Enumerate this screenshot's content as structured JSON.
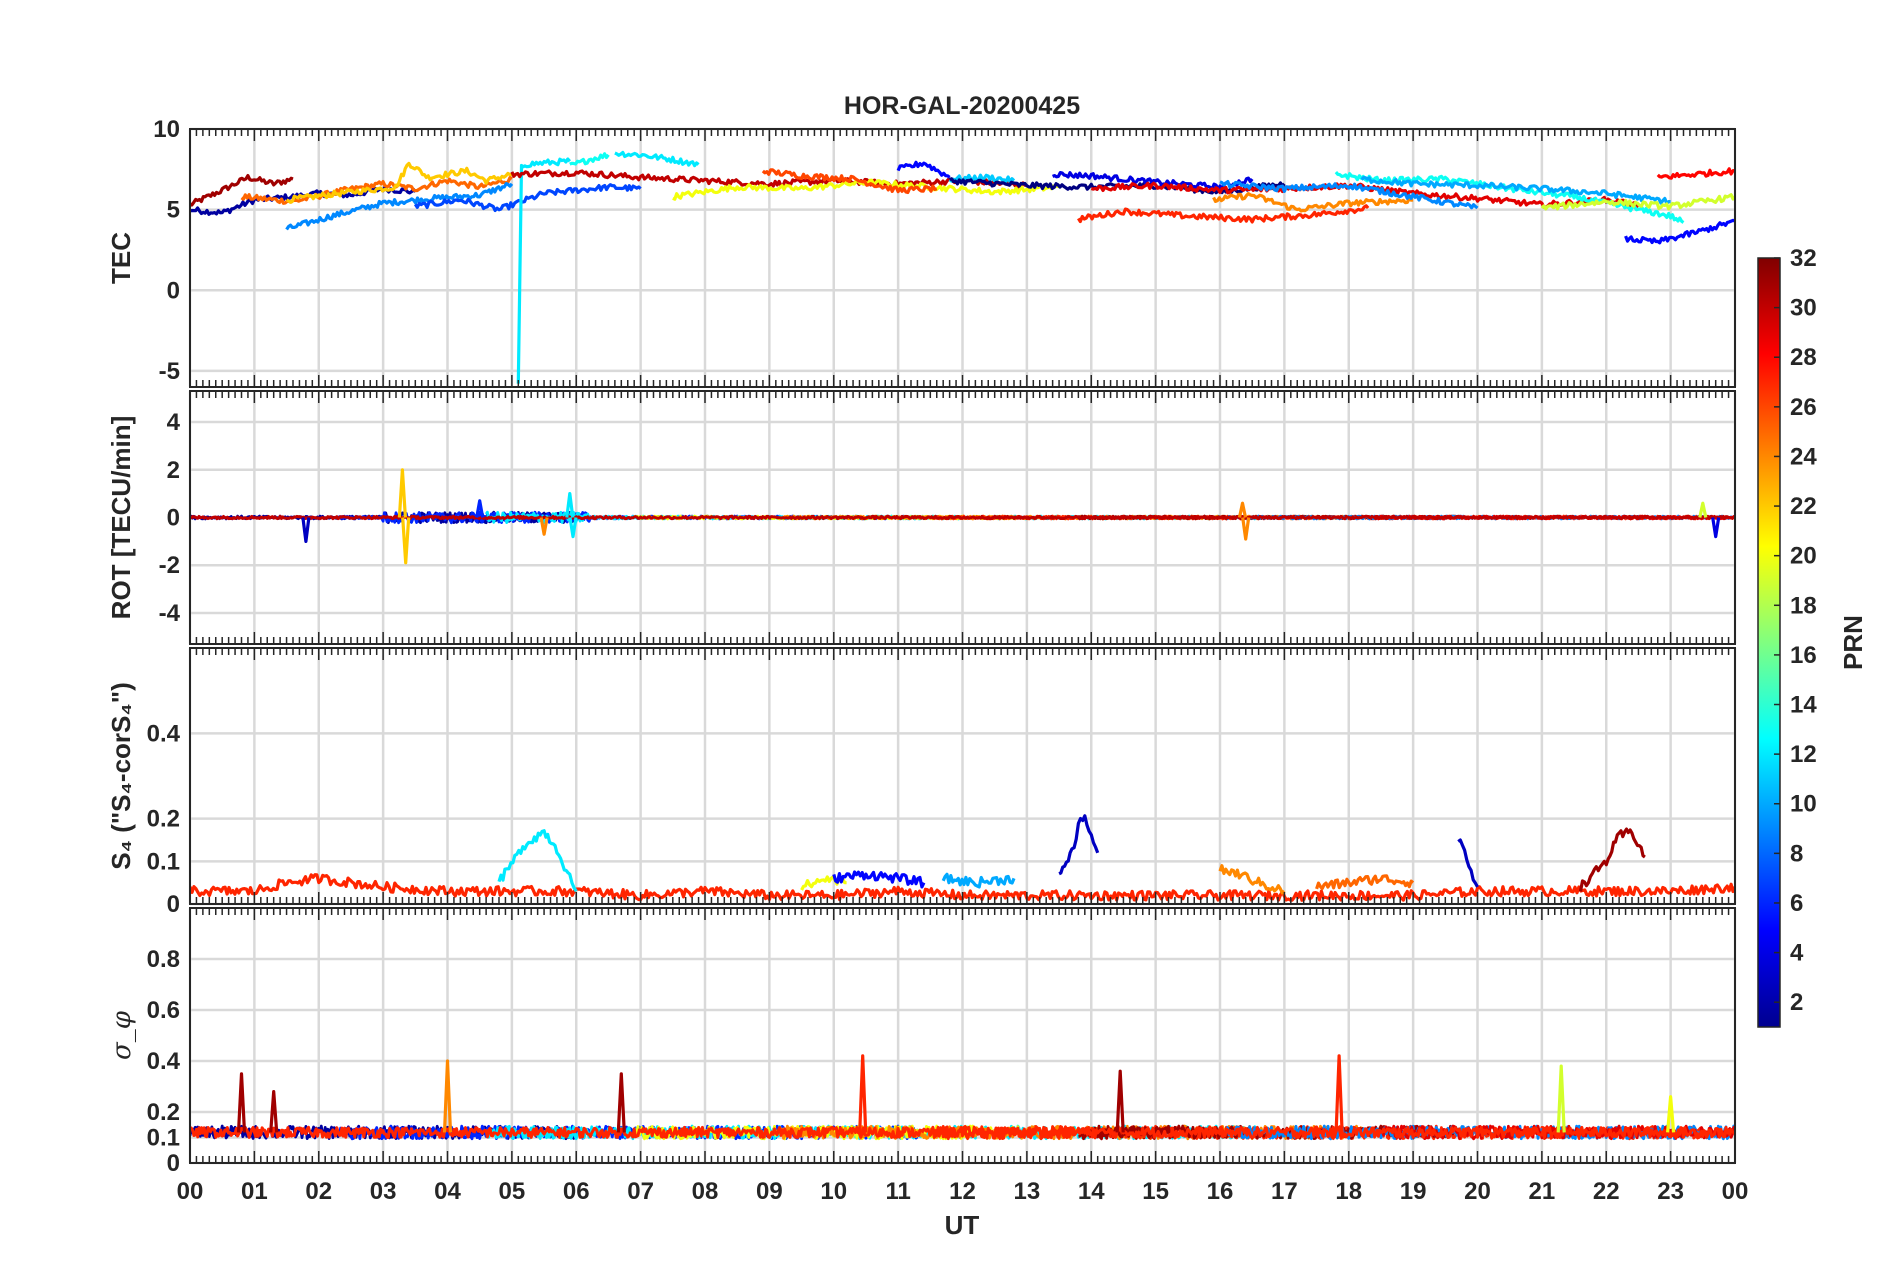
{
  "figure": {
    "title": "HOR-GAL-20200425",
    "xlabel": "UT",
    "colorbar_label": "PRN"
  },
  "chart_data": {
    "type": "line",
    "title": "HOR-GAL-20200425",
    "xlabel": "UT",
    "x_ticks": [
      "00",
      "01",
      "02",
      "03",
      "04",
      "05",
      "06",
      "07",
      "08",
      "09",
      "10",
      "11",
      "12",
      "13",
      "14",
      "15",
      "16",
      "17",
      "18",
      "19",
      "20",
      "21",
      "22",
      "23",
      "00"
    ],
    "xlim_hours": [
      0,
      24
    ],
    "grid": true,
    "colorbar": {
      "label": "PRN",
      "range": [
        1,
        32
      ],
      "ticks": [
        "2",
        "4",
        "6",
        "8",
        "10",
        "12",
        "14",
        "16",
        "18",
        "20",
        "22",
        "24",
        "26",
        "28",
        "30",
        "32"
      ],
      "colormap": "jet",
      "colors": [
        "#00008f",
        "#0000ff",
        "#0080ff",
        "#00ffff",
        "#80ff80",
        "#ffff00",
        "#ff8000",
        "#ff0000",
        "#800000"
      ]
    },
    "panels": [
      {
        "ylabel": "TEC",
        "ylim": [
          -6,
          10
        ],
        "yticks": [
          "10",
          "5",
          "0",
          "-5"
        ],
        "series": [
          {
            "prn": 31,
            "t": [
              0,
              0.5,
              0.9,
              1.3,
              1.6
            ],
            "v": [
              5.3,
              6.2,
              7.0,
              6.6,
              6.9
            ]
          },
          {
            "prn": 2,
            "t": [
              0,
              0.5,
              1.0,
              1.6,
              2.0,
              2.5,
              3.0,
              3.5
            ],
            "v": [
              5.0,
              4.8,
              5.6,
              5.8,
              6.0,
              5.9,
              6.3,
              6.1
            ]
          },
          {
            "prn": 25,
            "t": [
              0.8,
              1.6,
              2.4,
              3.0,
              3.5,
              4.0,
              4.5,
              5.0
            ],
            "v": [
              5.8,
              5.5,
              6.2,
              6.6,
              6.3,
              6.8,
              6.4,
              6.9
            ]
          },
          {
            "prn": 22,
            "t": [
              1.5,
              2.3,
              3.2,
              3.4,
              3.7,
              4.3,
              4.6,
              5.0
            ],
            "v": [
              5.6,
              6.0,
              6.4,
              7.9,
              7.0,
              7.4,
              6.8,
              7.2
            ]
          },
          {
            "prn": 9,
            "t": [
              1.5,
              2.2,
              3.0,
              3.8,
              4.5,
              5.0
            ],
            "v": [
              3.8,
              4.6,
              5.4,
              5.7,
              5.9,
              6.6
            ]
          },
          {
            "prn": 7,
            "t": [
              3.5,
              4.2,
              4.8,
              5.5,
              6.0,
              6.5,
              7.0
            ],
            "v": [
              5.2,
              5.6,
              5.0,
              6.0,
              6.2,
              6.4,
              6.3
            ]
          },
          {
            "prn": 12,
            "t": [
              5.1,
              5.15,
              5.2,
              5.5,
              5.9
            ],
            "v": [
              -5.8,
              7.6,
              7.8,
              7.9,
              8.0
            ]
          },
          {
            "prn": 13,
            "t": [
              5.9,
              6.2,
              6.5
            ],
            "v": [
              7.7,
              8.1,
              8.4
            ]
          },
          {
            "prn": 12,
            "t": [
              6.6,
              7.0,
              7.5,
              7.9
            ],
            "v": [
              8.5,
              8.4,
              8.1,
              7.8
            ]
          },
          {
            "prn": 30,
            "t": [
              5.0,
              6.0,
              7.0,
              8.0,
              9.0,
              10.0,
              11.0,
              12.0,
              13.0
            ],
            "v": [
              7.2,
              7.3,
              7.0,
              6.8,
              6.6,
              6.8,
              6.6,
              6.8,
              6.5
            ]
          },
          {
            "prn": 20,
            "t": [
              7.5,
              8.5,
              9.5,
              10.5,
              11.5,
              12.5,
              13.5
            ],
            "v": [
              5.8,
              6.4,
              6.3,
              6.7,
              6.4,
              6.1,
              6.4
            ]
          },
          {
            "prn": 26,
            "t": [
              8.9,
              9.5,
              10.3,
              11.0,
              11.6
            ],
            "v": [
              7.4,
              7.1,
              6.9,
              6.2,
              6.3
            ]
          },
          {
            "prn": 5,
            "t": [
              11.0,
              11.4,
              11.8
            ],
            "v": [
              7.5,
              7.9,
              7.0
            ]
          },
          {
            "prn": 11,
            "t": [
              11.8,
              12.4,
              12.8
            ],
            "v": [
              6.9,
              7.0,
              6.8
            ]
          },
          {
            "prn": 1,
            "t": [
              11.8,
              13.0,
              14.0,
              15.0,
              16.0,
              17.0
            ],
            "v": [
              6.8,
              6.5,
              6.4,
              6.5,
              6.1,
              6.6
            ]
          },
          {
            "prn": 4,
            "t": [
              13.4,
              14.0,
              15.0,
              16.0,
              16.5
            ],
            "v": [
              7.2,
              7.1,
              6.7,
              6.4,
              6.9
            ]
          },
          {
            "prn": 27,
            "t": [
              13.8,
              14.5,
              15.5,
              16.5,
              17.5,
              18.3
            ],
            "v": [
              4.4,
              4.9,
              4.6,
              4.4,
              4.7,
              5.1
            ]
          },
          {
            "prn": 24,
            "t": [
              15.9,
              16.5,
              17.2,
              18.0,
              19.0
            ],
            "v": [
              5.6,
              5.9,
              5.0,
              5.4,
              5.6
            ]
          },
          {
            "prn": 29,
            "t": [
              14.0,
              15.0,
              16.0,
              17.0,
              18.0,
              19.0,
              20.0,
              21.0,
              22.0,
              22.5
            ],
            "v": [
              6.3,
              6.5,
              6.2,
              6.3,
              6.5,
              6.0,
              5.7,
              5.3,
              5.6,
              5.3
            ]
          },
          {
            "prn": 9,
            "t": [
              16.0,
              17.0,
              18.0,
              19.0,
              20.0
            ],
            "v": [
              6.6,
              6.3,
              6.5,
              5.8,
              5.1
            ]
          },
          {
            "prn": 13,
            "t": [
              17.8,
              18.5,
              19.5,
              20.5,
              21.5,
              22.5,
              23.0,
              23.2
            ],
            "v": [
              7.2,
              6.8,
              6.9,
              6.3,
              5.8,
              5.0,
              4.6,
              4.2
            ]
          },
          {
            "prn": 10,
            "t": [
              18.2,
              19.0,
              20.0,
              21.0,
              22.0,
              23.0
            ],
            "v": [
              6.9,
              6.6,
              6.5,
              6.3,
              6.0,
              5.5
            ]
          },
          {
            "prn": 19,
            "t": [
              21.0,
              22.0,
              23.0,
              24.0
            ],
            "v": [
              5.1,
              5.5,
              5.2,
              5.8
            ]
          },
          {
            "prn": 5,
            "t": [
              22.3,
              22.8,
              23.5,
              24.0
            ],
            "v": [
              3.2,
              3.0,
              3.7,
              4.3
            ]
          },
          {
            "prn": 28,
            "t": [
              22.8,
              23.4,
              24.0
            ],
            "v": [
              7.0,
              7.2,
              7.4
            ]
          }
        ]
      },
      {
        "ylabel": "ROT [TECU/min]",
        "ylim": [
          -5.3,
          5.3
        ],
        "yticks": [
          "4",
          "2",
          "0",
          "-2",
          "-4"
        ],
        "baseline": 0,
        "note": "ROT fluctuates near 0 for all PRNs; largest excursions near 03.4 UT",
        "spikes": [
          {
            "t": 1.8,
            "v": -1.0,
            "prn": 3
          },
          {
            "t": 3.3,
            "v": 2.0,
            "prn": 22
          },
          {
            "t": 3.35,
            "v": -1.9,
            "prn": 22
          },
          {
            "t": 4.5,
            "v": 0.7,
            "prn": 6
          },
          {
            "t": 5.5,
            "v": -0.7,
            "prn": 24
          },
          {
            "t": 5.9,
            "v": 1.0,
            "prn": 12
          },
          {
            "t": 5.95,
            "v": -0.8,
            "prn": 12
          },
          {
            "t": 16.4,
            "v": -0.9,
            "prn": 24
          },
          {
            "t": 16.35,
            "v": 0.6,
            "prn": 24
          },
          {
            "t": 23.5,
            "v": 0.6,
            "prn": 19
          },
          {
            "t": 23.7,
            "v": -0.8,
            "prn": 4
          }
        ]
      },
      {
        "ylabel": "S₄ (\"S₄-corS₄\")",
        "ylim": [
          0,
          0.6
        ],
        "yticks": [
          "0.4",
          "0.2",
          "0.1",
          "0"
        ],
        "series": [
          {
            "prn": 27,
            "t": [
              0,
              1,
              1.5,
              2,
              3,
              4,
              5,
              6,
              7,
              8,
              9,
              10,
              11,
              12,
              13,
              14,
              15,
              16,
              17,
              18,
              19,
              20,
              21,
              22,
              23,
              24
            ],
            "v": [
              0.03,
              0.03,
              0.05,
              0.06,
              0.04,
              0.03,
              0.03,
              0.03,
              0.02,
              0.03,
              0.02,
              0.02,
              0.03,
              0.02,
              0.02,
              0.02,
              0.02,
              0.02,
              0.02,
              0.02,
              0.02,
              0.03,
              0.03,
              0.03,
              0.03,
              0.04
            ]
          },
          {
            "prn": 12,
            "t": [
              4.8,
              5.2,
              5.5,
              5.7,
              5.9,
              6.0
            ],
            "v": [
              0.05,
              0.14,
              0.17,
              0.13,
              0.06,
              0.03
            ]
          },
          {
            "prn": 3,
            "t": [
              13.5,
              13.7,
              13.8,
              13.9,
              14.0,
              14.1
            ],
            "v": [
              0.06,
              0.12,
              0.18,
              0.21,
              0.16,
              0.12
            ]
          },
          {
            "prn": 3,
            "t": [
              19.7,
              19.8,
              19.9,
              20.0
            ],
            "v": [
              0.15,
              0.12,
              0.08,
              0.04
            ]
          },
          {
            "prn": 31,
            "t": [
              21.6,
              22.0,
              22.2,
              22.4,
              22.6
            ],
            "v": [
              0.04,
              0.1,
              0.16,
              0.17,
              0.11
            ]
          },
          {
            "prn": 24,
            "t": [
              16.0,
              16.3,
              16.6,
              17.0
            ],
            "v": [
              0.08,
              0.07,
              0.05,
              0.03
            ]
          },
          {
            "prn": 25,
            "t": [
              17.5,
              18.0,
              18.5,
              19.0
            ],
            "v": [
              0.04,
              0.05,
              0.06,
              0.05
            ]
          },
          {
            "prn": 20,
            "t": [
              9.5,
              9.9,
              10.2
            ],
            "v": [
              0.04,
              0.06,
              0.05
            ]
          },
          {
            "prn": 5,
            "t": [
              10.0,
              10.5,
              11.0,
              11.4
            ],
            "v": [
              0.06,
              0.07,
              0.06,
              0.05
            ]
          },
          {
            "prn": 10,
            "t": [
              11.7,
              12.2,
              12.8
            ],
            "v": [
              0.06,
              0.05,
              0.06
            ]
          }
        ]
      },
      {
        "ylabel": "σ_φ",
        "ylim": [
          0,
          1
        ],
        "yticks": [
          "0.8",
          "0.6",
          "0.4",
          "0.2",
          "0.1",
          "0"
        ],
        "baseline": 0.12,
        "spikes": [
          {
            "t": 0.8,
            "v": 0.35,
            "prn": 31
          },
          {
            "t": 1.3,
            "v": 0.28,
            "prn": 31
          },
          {
            "t": 4.0,
            "v": 0.4,
            "prn": 24
          },
          {
            "t": 6.7,
            "v": 0.35,
            "prn": 31
          },
          {
            "t": 10.45,
            "v": 0.42,
            "prn": 27
          },
          {
            "t": 14.45,
            "v": 0.36,
            "prn": 31
          },
          {
            "t": 17.85,
            "v": 0.42,
            "prn": 27
          },
          {
            "t": 21.3,
            "v": 0.38,
            "prn": 19
          },
          {
            "t": 23.0,
            "v": 0.26,
            "prn": 20
          }
        ]
      }
    ]
  }
}
